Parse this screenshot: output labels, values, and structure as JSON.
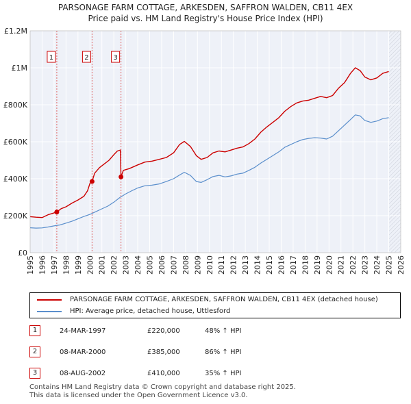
{
  "chart_data": {
    "type": "line",
    "title": "PARSONAGE FARM COTTAGE, ARKESDEN, SAFFRON WALDEN, CB11 4EX",
    "subtitle": "Price paid vs. HM Land Registry's House Price Index (HPI)",
    "xlim": [
      1995,
      2026
    ],
    "ylim": [
      0,
      1200000
    ],
    "x_ticks": [
      1995,
      1996,
      1997,
      1998,
      1999,
      2000,
      2001,
      2002,
      2003,
      2004,
      2005,
      2006,
      2007,
      2008,
      2009,
      2010,
      2011,
      2012,
      2013,
      2014,
      2015,
      2016,
      2017,
      2018,
      2019,
      2020,
      2021,
      2022,
      2023,
      2024,
      2025,
      2026
    ],
    "y_ticks": [
      {
        "value": 0,
        "label": "£0"
      },
      {
        "value": 200000,
        "label": "£200K"
      },
      {
        "value": 400000,
        "label": "£400K"
      },
      {
        "value": 600000,
        "label": "£600K"
      },
      {
        "value": 800000,
        "label": "£800K"
      },
      {
        "value": 1000000,
        "label": "£1M"
      },
      {
        "value": 1200000,
        "label": "£1.2M"
      }
    ],
    "forecast_start": 2025.0,
    "series": [
      {
        "name": "PARSONAGE FARM COTTAGE, ARKESDEN, SAFFRON WALDEN, CB11 4EX (detached house)",
        "color": "#cc0000",
        "points": [
          [
            1995.0,
            195000
          ],
          [
            1995.5,
            192000
          ],
          [
            1996.0,
            190000
          ],
          [
            1996.5,
            205000
          ],
          [
            1997.0,
            215000
          ],
          [
            1997.23,
            220000
          ],
          [
            1997.6,
            238000
          ],
          [
            1998.0,
            248000
          ],
          [
            1998.5,
            268000
          ],
          [
            1999.0,
            285000
          ],
          [
            1999.5,
            305000
          ],
          [
            1999.8,
            335000
          ],
          [
            2000.0,
            375000
          ],
          [
            2000.18,
            385000
          ],
          [
            2000.4,
            430000
          ],
          [
            2000.8,
            460000
          ],
          [
            2001.2,
            480000
          ],
          [
            2001.6,
            500000
          ],
          [
            2002.0,
            530000
          ],
          [
            2002.3,
            550000
          ],
          [
            2002.55,
            555000
          ],
          [
            2002.6,
            410000
          ],
          [
            2002.8,
            445000
          ],
          [
            2003.3,
            455000
          ],
          [
            2004.0,
            475000
          ],
          [
            2004.6,
            490000
          ],
          [
            2005.2,
            495000
          ],
          [
            2005.8,
            505000
          ],
          [
            2006.4,
            515000
          ],
          [
            2007.0,
            540000
          ],
          [
            2007.5,
            585000
          ],
          [
            2007.9,
            602000
          ],
          [
            2008.4,
            575000
          ],
          [
            2008.9,
            525000
          ],
          [
            2009.3,
            505000
          ],
          [
            2009.8,
            515000
          ],
          [
            2010.3,
            540000
          ],
          [
            2010.8,
            550000
          ],
          [
            2011.3,
            545000
          ],
          [
            2011.8,
            555000
          ],
          [
            2012.3,
            565000
          ],
          [
            2012.8,
            572000
          ],
          [
            2013.3,
            590000
          ],
          [
            2013.8,
            615000
          ],
          [
            2014.3,
            652000
          ],
          [
            2014.8,
            680000
          ],
          [
            2015.3,
            705000
          ],
          [
            2015.8,
            730000
          ],
          [
            2016.3,
            765000
          ],
          [
            2016.8,
            790000
          ],
          [
            2017.3,
            810000
          ],
          [
            2017.8,
            820000
          ],
          [
            2018.3,
            825000
          ],
          [
            2018.8,
            835000
          ],
          [
            2019.3,
            845000
          ],
          [
            2019.8,
            838000
          ],
          [
            2020.3,
            850000
          ],
          [
            2020.8,
            890000
          ],
          [
            2021.3,
            920000
          ],
          [
            2021.8,
            970000
          ],
          [
            2022.2,
            1000000
          ],
          [
            2022.6,
            985000
          ],
          [
            2023.0,
            950000
          ],
          [
            2023.5,
            935000
          ],
          [
            2024.0,
            945000
          ],
          [
            2024.5,
            970000
          ],
          [
            2025.0,
            980000
          ]
        ]
      },
      {
        "name": "HPI: Average price, detached house, Uttlesford",
        "color": "#5b8fcc",
        "points": [
          [
            1995.0,
            135000
          ],
          [
            1995.5,
            133000
          ],
          [
            1996.0,
            134000
          ],
          [
            1996.5,
            139000
          ],
          [
            1997.0,
            145000
          ],
          [
            1997.5,
            150000
          ],
          [
            1998.0,
            160000
          ],
          [
            1998.5,
            170000
          ],
          [
            1999.0,
            183000
          ],
          [
            1999.5,
            196000
          ],
          [
            2000.0,
            207000
          ],
          [
            2000.5,
            222000
          ],
          [
            2001.0,
            237000
          ],
          [
            2001.5,
            252000
          ],
          [
            2002.0,
            273000
          ],
          [
            2002.5,
            298000
          ],
          [
            2003.0,
            318000
          ],
          [
            2003.5,
            335000
          ],
          [
            2004.0,
            350000
          ],
          [
            2004.6,
            362000
          ],
          [
            2005.2,
            365000
          ],
          [
            2005.8,
            372000
          ],
          [
            2006.4,
            385000
          ],
          [
            2007.0,
            400000
          ],
          [
            2007.5,
            420000
          ],
          [
            2007.9,
            435000
          ],
          [
            2008.4,
            418000
          ],
          [
            2008.9,
            385000
          ],
          [
            2009.3,
            380000
          ],
          [
            2009.8,
            395000
          ],
          [
            2010.3,
            412000
          ],
          [
            2010.8,
            418000
          ],
          [
            2011.3,
            410000
          ],
          [
            2011.8,
            415000
          ],
          [
            2012.3,
            425000
          ],
          [
            2012.8,
            430000
          ],
          [
            2013.3,
            445000
          ],
          [
            2013.8,
            462000
          ],
          [
            2014.3,
            485000
          ],
          [
            2014.8,
            505000
          ],
          [
            2015.3,
            525000
          ],
          [
            2015.8,
            545000
          ],
          [
            2016.3,
            570000
          ],
          [
            2016.8,
            585000
          ],
          [
            2017.3,
            600000
          ],
          [
            2017.8,
            612000
          ],
          [
            2018.3,
            618000
          ],
          [
            2018.8,
            622000
          ],
          [
            2019.3,
            620000
          ],
          [
            2019.8,
            615000
          ],
          [
            2020.3,
            630000
          ],
          [
            2020.8,
            660000
          ],
          [
            2021.3,
            690000
          ],
          [
            2021.8,
            720000
          ],
          [
            2022.2,
            745000
          ],
          [
            2022.6,
            740000
          ],
          [
            2023.0,
            715000
          ],
          [
            2023.5,
            705000
          ],
          [
            2024.0,
            712000
          ],
          [
            2024.5,
            725000
          ],
          [
            2025.0,
            730000
          ]
        ]
      }
    ],
    "transactions": [
      {
        "num": "1",
        "x": 1997.23,
        "price": 220000
      },
      {
        "num": "2",
        "x": 2000.18,
        "price": 385000
      },
      {
        "num": "3",
        "x": 2002.6,
        "price": 410000
      }
    ]
  },
  "legend": {
    "property": "PARSONAGE FARM COTTAGE, ARKESDEN, SAFFRON WALDEN, CB11 4EX (detached house)",
    "hpi": "HPI: Average price, detached house, Uttlesford"
  },
  "table": [
    {
      "num": "1",
      "date": "24-MAR-1997",
      "price": "£220,000",
      "hpi": "48% ↑ HPI"
    },
    {
      "num": "2",
      "date": "08-MAR-2000",
      "price": "£385,000",
      "hpi": "86% ↑ HPI"
    },
    {
      "num": "3",
      "date": "08-AUG-2002",
      "price": "£410,000",
      "hpi": "35% ↑ HPI"
    }
  ],
  "footer": {
    "line1": "Contains HM Land Registry data © Crown copyright and database right 2025.",
    "line2": "This data is licensed under the Open Government Licence v3.0."
  },
  "colors": {
    "property": "#cc0000",
    "hpi": "#5b8fcc",
    "plot_bg": "#eef1f8",
    "grid": "#ffffff"
  }
}
